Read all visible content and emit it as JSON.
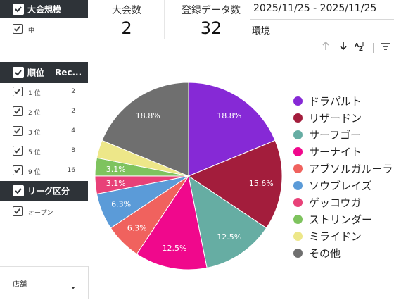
{
  "sidebar": {
    "filter1": {
      "title": "大会規模",
      "items": [
        {
          "label": "中"
        }
      ]
    },
    "filter2": {
      "title": "順位",
      "col2": "Rec...",
      "items": [
        {
          "label": "1 位",
          "value": "2"
        },
        {
          "label": "2 位",
          "value": "2"
        },
        {
          "label": "3 位",
          "value": "4"
        },
        {
          "label": "5 位",
          "value": "8"
        },
        {
          "label": "9 位",
          "value": "16"
        }
      ]
    },
    "filter3": {
      "title": "リーグ区分",
      "items": [
        {
          "label": "オープン"
        }
      ]
    },
    "store_dropdown": {
      "label": "店舗"
    }
  },
  "kpis": [
    {
      "label": "大会数",
      "value": "2"
    },
    {
      "label": "登録データ数",
      "value": "32"
    }
  ],
  "date_range": "2025/11/25 - 2025/11/25",
  "environment_label": "環境",
  "toolbar": {
    "icons": [
      "arrow-up-icon",
      "arrow-down-icon",
      "sort-az-icon",
      "filter-icon"
    ]
  },
  "chart_data": {
    "type": "pie",
    "slices": [
      {
        "name": "ドラパルト",
        "value": 18.8,
        "label": "18.8%",
        "color": "#8629d6"
      },
      {
        "name": "リザードン",
        "value": 15.6,
        "label": "15.6%",
        "color": "#a31d3c"
      },
      {
        "name": "サーフゴー",
        "value": 12.5,
        "label": "12.5%",
        "color": "#66ada3"
      },
      {
        "name": "サーナイト",
        "value": 12.5,
        "label": "12.5%",
        "color": "#f0088c"
      },
      {
        "name": "アブソルガルーラ",
        "value": 6.3,
        "label": "6.3%",
        "color": "#f0625e"
      },
      {
        "name": "ソウブレイズ",
        "value": 6.3,
        "label": "6.3%",
        "color": "#5b9bd8"
      },
      {
        "name": "ゲッコウガ",
        "value": 3.1,
        "label": "3.1%",
        "color": "#e84178"
      },
      {
        "name": "ストリンダー",
        "value": 3.1,
        "label": "3.1%",
        "color": "#7ec35e"
      },
      {
        "name": "ミライドン",
        "value": 3.1,
        "label": "",
        "color": "#ede789"
      },
      {
        "name": "その他",
        "value": 18.8,
        "label": "18.8%",
        "color": "#6f6f6f"
      }
    ]
  }
}
